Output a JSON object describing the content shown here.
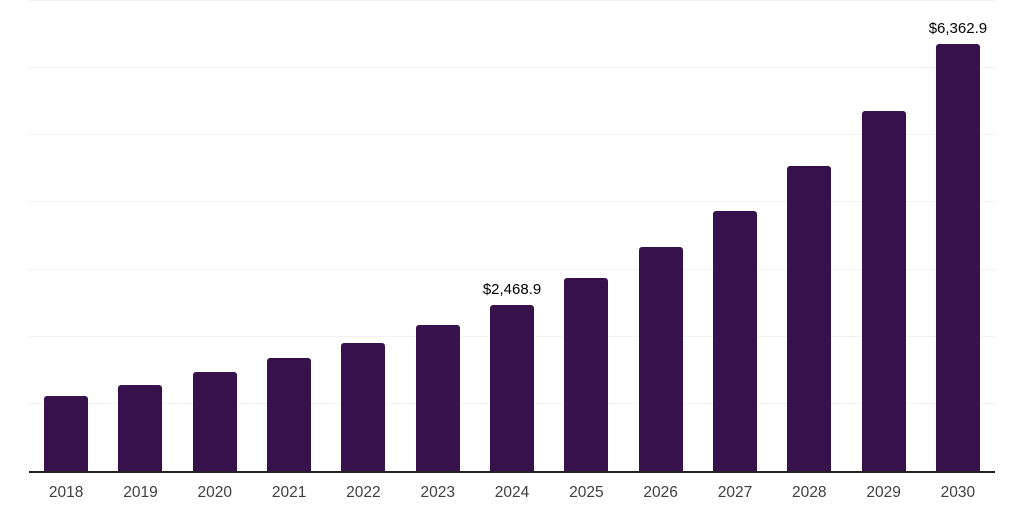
{
  "chart_data": {
    "type": "bar",
    "categories": [
      "2018",
      "2019",
      "2020",
      "2021",
      "2022",
      "2023",
      "2024",
      "2025",
      "2026",
      "2027",
      "2028",
      "2029",
      "2030"
    ],
    "values": [
      1110,
      1280,
      1480,
      1680,
      1910,
      2170,
      2468.9,
      2870,
      3340,
      3880,
      4550,
      5360,
      6362.9
    ],
    "data_labels": {
      "2024": "$2,468.9",
      "2030": "$6,362.9"
    },
    "title": "",
    "xlabel": "",
    "ylabel": "",
    "ylim": [
      0,
      7000
    ],
    "gridline_step": 1000,
    "grid": "horizontal-only",
    "legend": "none",
    "colors": {
      "bar": "#37114C",
      "gridline": "#F2F2F2",
      "axis_line": "#222222",
      "tick_label": "#3F3F3F",
      "data_label": "#000000",
      "background": "#FFFFFF"
    }
  }
}
